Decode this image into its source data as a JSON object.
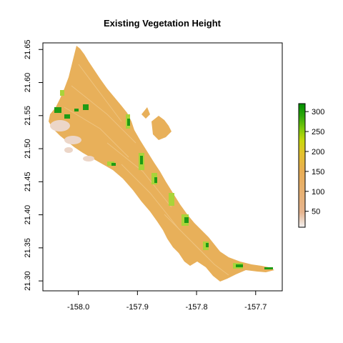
{
  "title": "Existing Vegetation Height",
  "map": {
    "type": "raster",
    "xlim": [
      -158.06,
      -157.655
    ],
    "ylim": [
      21.285,
      21.66
    ],
    "x_ticks": [
      {
        "value": -158.0,
        "label": "-158.0"
      },
      {
        "value": -157.9,
        "label": "-157.9"
      },
      {
        "value": -157.8,
        "label": "-157.8"
      },
      {
        "value": -157.7,
        "label": "-157.7"
      }
    ],
    "y_ticks": [
      {
        "value": 21.3,
        "label": "21.30"
      },
      {
        "value": 21.35,
        "label": "21.35"
      },
      {
        "value": 21.4,
        "label": "21.40"
      },
      {
        "value": 21.45,
        "label": "21.45"
      },
      {
        "value": 21.5,
        "label": "21.50"
      },
      {
        "value": 21.55,
        "label": "21.55"
      },
      {
        "value": 21.6,
        "label": "21.60"
      },
      {
        "value": 21.65,
        "label": "21.65"
      }
    ]
  },
  "legend": {
    "range": [
      10,
      320
    ],
    "ticks": [
      {
        "value": 50,
        "label": "50"
      },
      {
        "value": 100,
        "label": "100"
      },
      {
        "value": 150,
        "label": "150"
      },
      {
        "value": 200,
        "label": "200"
      },
      {
        "value": 250,
        "label": "250"
      },
      {
        "value": 300,
        "label": "300"
      }
    ],
    "colors": [
      "#f2f2f2",
      "#e6b48f",
      "#e8ad55",
      "#e3c22c",
      "#c8d80c",
      "#7ac90a",
      "#2ea80a",
      "#008f00"
    ]
  },
  "colors": {
    "land": "#e8b05a",
    "low_veg": "#ecd6c8",
    "mid_veg": "#a9d43a",
    "high_veg": "#1e9c14"
  }
}
